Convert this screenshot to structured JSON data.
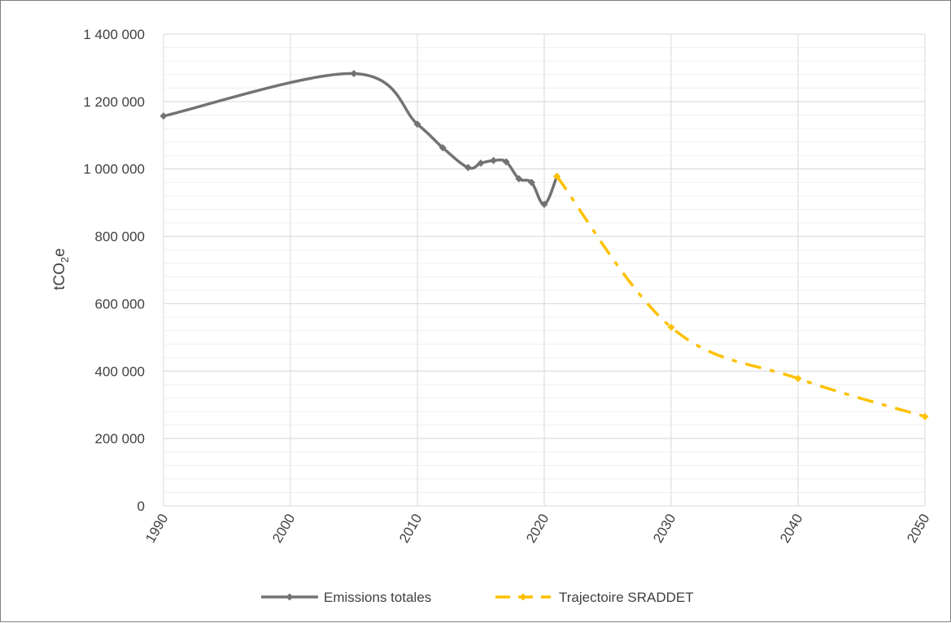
{
  "chart_data": {
    "type": "line",
    "title": "",
    "xlabel": "",
    "ylabel_main": "tCO",
    "ylabel_sub": "2",
    "ylabel_suffix": "e",
    "xlim": [
      1990,
      2050
    ],
    "ylim": [
      0,
      1400000
    ],
    "x_ticks": [
      1990,
      2000,
      2010,
      2020,
      2030,
      2040,
      2050
    ],
    "x_tick_labels": [
      "1990",
      "2000",
      "2010",
      "2020",
      "2030",
      "2040",
      "2050"
    ],
    "y_ticks": [
      0,
      200000,
      400000,
      600000,
      800000,
      1000000,
      1200000,
      1400000
    ],
    "y_tick_labels": [
      "0",
      "200 000",
      "400 000",
      "600 000",
      "800 000",
      "1 000 000",
      "1 200 000",
      "1 400 000"
    ],
    "y_minor_step": 40000,
    "grid": true,
    "legend_position": "bottom",
    "series": [
      {
        "name": "Emissions totales",
        "color": "#737373",
        "dash": "solid",
        "x": [
          1990,
          2005,
          2010,
          2012,
          2014,
          2015,
          2016,
          2017,
          2018,
          2019,
          2020,
          2021
        ],
        "y": [
          1157000,
          1283000,
          1133000,
          1063000,
          1004000,
          1017000,
          1025000,
          1021000,
          971000,
          960000,
          895000,
          978000
        ]
      },
      {
        "name": "Trajectoire SRADDET",
        "color": "#ffc000",
        "dash": "dashdot",
        "x": [
          2021,
          2030,
          2040,
          2050
        ],
        "y": [
          978000,
          530000,
          378000,
          265000
        ]
      }
    ]
  }
}
